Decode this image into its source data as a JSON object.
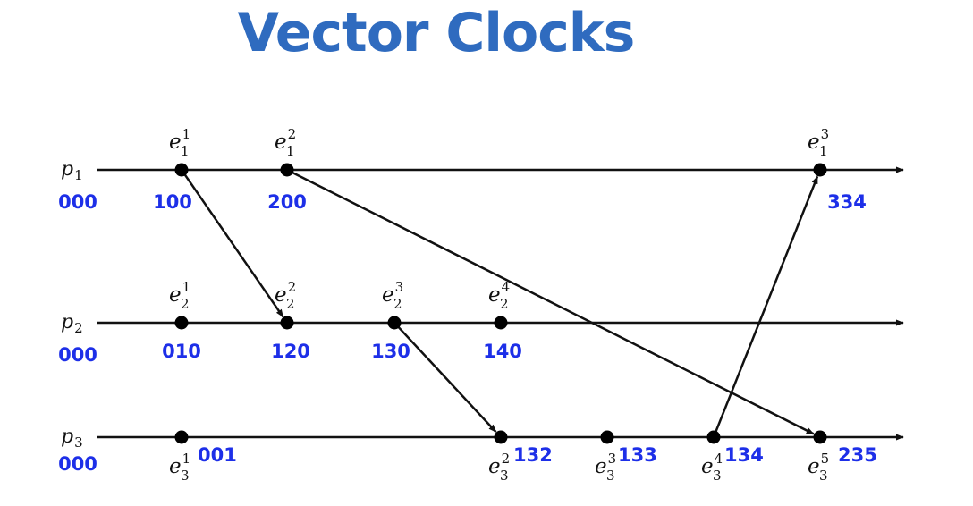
{
  "title": "Vector Clocks",
  "colors": {
    "title": "#2f6bbf",
    "clock": "#1d2fe8",
    "line": "#111111"
  },
  "processes": [
    {
      "id": "p1",
      "letter": "p",
      "index": "1",
      "initial_clock": "000"
    },
    {
      "id": "p2",
      "letter": "p",
      "index": "2",
      "initial_clock": "000"
    },
    {
      "id": "p3",
      "letter": "p",
      "index": "3",
      "initial_clock": "000"
    }
  ],
  "events": [
    {
      "id": "e1_1",
      "process": 1,
      "letter": "e",
      "sub": "1",
      "sup": "1",
      "clock": "100"
    },
    {
      "id": "e1_2",
      "process": 1,
      "letter": "e",
      "sub": "1",
      "sup": "2",
      "clock": "200"
    },
    {
      "id": "e1_3",
      "process": 1,
      "letter": "e",
      "sub": "1",
      "sup": "3",
      "clock": "334"
    },
    {
      "id": "e2_1",
      "process": 2,
      "letter": "e",
      "sub": "2",
      "sup": "1",
      "clock": "010"
    },
    {
      "id": "e2_2",
      "process": 2,
      "letter": "e",
      "sub": "2",
      "sup": "2",
      "clock": "120"
    },
    {
      "id": "e2_3",
      "process": 2,
      "letter": "e",
      "sub": "2",
      "sup": "3",
      "clock": "130"
    },
    {
      "id": "e2_4",
      "process": 2,
      "letter": "e",
      "sub": "2",
      "sup": "4",
      "clock": "140"
    },
    {
      "id": "e3_1",
      "process": 3,
      "letter": "e",
      "sub": "3",
      "sup": "1",
      "clock": "001"
    },
    {
      "id": "e3_2",
      "process": 3,
      "letter": "e",
      "sub": "3",
      "sup": "2",
      "clock": "132"
    },
    {
      "id": "e3_3",
      "process": 3,
      "letter": "e",
      "sub": "3",
      "sup": "3",
      "clock": "133"
    },
    {
      "id": "e3_4",
      "process": 3,
      "letter": "e",
      "sub": "3",
      "sup": "4",
      "clock": "134"
    },
    {
      "id": "e3_5",
      "process": 3,
      "letter": "e",
      "sub": "3",
      "sup": "5",
      "clock": "235"
    }
  ],
  "messages": [
    {
      "from": "e1_1",
      "to": "e2_2"
    },
    {
      "from": "e1_2",
      "to": "e3_5"
    },
    {
      "from": "e2_3",
      "to": "e3_2"
    },
    {
      "from": "e3_4",
      "to": "e1_3"
    }
  ]
}
